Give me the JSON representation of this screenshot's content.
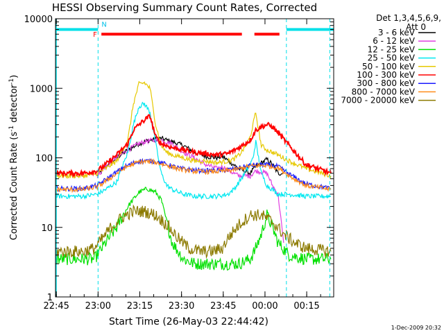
{
  "chart_data": {
    "type": "line",
    "title": "HESSI Observing Summary Count Rates, Corrected",
    "xlabel": "Start Time (26-May-03 22:44:42)",
    "ylabel_main": "Corrected Count Rate (s",
    "ylabel_sup": "-1",
    "ylabel_rest": " detector",
    "ylabel_end": ")",
    "x_unit": "minutes after 26-May-03 22:44:42",
    "xlim": [
      0,
      100
    ],
    "ylim": [
      1,
      10000
    ],
    "y_scale": "log",
    "x_ticks": [
      {
        "label": "22:45",
        "value": 0.3
      },
      {
        "label": "23:00",
        "value": 15.3
      },
      {
        "label": "23:15",
        "value": 30.3
      },
      {
        "label": "23:30",
        "value": 45.3
      },
      {
        "label": "23:45",
        "value": 60.3
      },
      {
        "label": "00:00",
        "value": 75.3
      },
      {
        "label": "00:15",
        "value": 90.3
      }
    ],
    "y_ticks": [
      {
        "label": "1",
        "value": 1
      },
      {
        "label": "10",
        "value": 10
      },
      {
        "label": "100",
        "value": 100
      },
      {
        "label": "1000",
        "value": 1000
      },
      {
        "label": "10000",
        "value": 10000
      }
    ],
    "legend_header": [
      "Det 1,3,4,5,6,9,",
      "Att 0"
    ],
    "legend_position": "right",
    "footer_date": "1-Dec-2009 20:32",
    "night_bars": [
      [
        0,
        15.3
      ],
      [
        83,
        100
      ]
    ],
    "night_level": 7000,
    "flare_bars": [
      [
        16.5,
        67.0
      ],
      [
        71.5,
        80.5
      ]
    ],
    "flare_level": 6000,
    "flare_label": "F",
    "night_label": "N",
    "saa_lines": [
      15.3,
      83.0,
      98.6
    ],
    "series": [
      {
        "name": "3 - 6 keV",
        "color": "#000000",
        "x": [
          15,
          18,
          22,
          26,
          30,
          33,
          36,
          38,
          42,
          46,
          50,
          54,
          58,
          60,
          64,
          66,
          70,
          72,
          76,
          78,
          80,
          82
        ],
        "y": [
          55,
          75,
          100,
          130,
          160,
          175,
          185,
          190,
          170,
          150,
          120,
          105,
          100,
          105,
          80,
          70,
          60,
          75,
          95,
          80,
          60,
          60
        ]
      },
      {
        "name": "6 - 12 keV",
        "color": "#e040e0",
        "x": [
          15,
          18,
          22,
          26,
          30,
          33,
          36,
          38,
          42,
          46,
          50,
          54,
          58,
          60,
          64,
          66,
          70,
          72,
          76,
          78,
          80,
          82
        ],
        "y": [
          55,
          75,
          100,
          130,
          160,
          175,
          180,
          180,
          160,
          120,
          100,
          80,
          70,
          75,
          60,
          55,
          55,
          65,
          60,
          40,
          30,
          6
        ]
      },
      {
        "name": "12 - 25 keV",
        "color": "#00e000",
        "x": [
          0,
          14,
          15,
          18,
          22,
          26,
          30,
          33,
          36,
          38,
          40,
          42,
          46,
          50,
          54,
          58,
          62,
          66,
          70,
          72,
          74,
          76,
          78,
          80,
          84,
          90,
          99
        ],
        "y": [
          3.5,
          3.5,
          4,
          6,
          10,
          20,
          32,
          36,
          32,
          25,
          12,
          6,
          3.5,
          3,
          3,
          3,
          3,
          3,
          3.5,
          5,
          8,
          15,
          10,
          6,
          4,
          3.5,
          3.5
        ]
      },
      {
        "name": "25 - 50 keV",
        "color": "#00e8f0",
        "x": [
          0,
          10,
          15,
          18,
          22,
          26,
          28,
          30,
          32,
          34,
          36,
          38,
          40,
          42,
          46,
          50,
          54,
          58,
          62,
          64,
          66,
          68,
          70,
          71,
          72,
          73,
          74,
          76,
          78,
          80,
          84,
          90,
          99
        ],
        "y": [
          28,
          28,
          30,
          35,
          45,
          120,
          300,
          550,
          600,
          450,
          160,
          60,
          40,
          35,
          30,
          28,
          28,
          28,
          30,
          35,
          45,
          60,
          80,
          100,
          170,
          100,
          60,
          40,
          35,
          30,
          30,
          28,
          28
        ]
      },
      {
        "name": "50 - 100 keV",
        "color": "#e6c800",
        "x": [
          0,
          10,
          15,
          18,
          22,
          26,
          28,
          30,
          32,
          34,
          36,
          38,
          40,
          42,
          46,
          50,
          54,
          58,
          62,
          64,
          66,
          68,
          70,
          71,
          72,
          73,
          74,
          76,
          78,
          80,
          84,
          90,
          99
        ],
        "y": [
          55,
          55,
          60,
          70,
          90,
          180,
          600,
          1150,
          1200,
          1000,
          300,
          150,
          120,
          110,
          100,
          90,
          90,
          85,
          90,
          95,
          110,
          140,
          200,
          300,
          450,
          250,
          150,
          130,
          120,
          110,
          90,
          70,
          55
        ]
      },
      {
        "name": "100 - 300 keV",
        "color": "#ff0000",
        "x": [
          0,
          10,
          15,
          18,
          22,
          26,
          28,
          30,
          32,
          34,
          36,
          38,
          42,
          46,
          50,
          54,
          58,
          62,
          66,
          70,
          72,
          74,
          76,
          78,
          80,
          84,
          90,
          99
        ],
        "y": [
          60,
          60,
          65,
          80,
          110,
          160,
          250,
          300,
          350,
          400,
          200,
          160,
          140,
          130,
          120,
          115,
          110,
          115,
          140,
          180,
          250,
          280,
          300,
          280,
          230,
          150,
          80,
          60
        ]
      },
      {
        "name": "300 - 800 keV",
        "color": "#1a1aff",
        "x": [
          0,
          10,
          15,
          20,
          25,
          30,
          35,
          40,
          45,
          50,
          55,
          60,
          65,
          70,
          75,
          80,
          85,
          90,
          99
        ],
        "y": [
          36,
          36,
          40,
          55,
          75,
          90,
          90,
          80,
          70,
          66,
          65,
          66,
          70,
          78,
          80,
          75,
          55,
          42,
          36
        ]
      },
      {
        "name": "800 - 7000 keV",
        "color": "#ff8c1a",
        "x": [
          0,
          10,
          15,
          20,
          25,
          30,
          35,
          40,
          45,
          50,
          55,
          60,
          65,
          70,
          75,
          80,
          85,
          90,
          99
        ],
        "y": [
          35,
          35,
          38,
          52,
          72,
          88,
          88,
          78,
          68,
          64,
          63,
          64,
          68,
          76,
          78,
          72,
          52,
          40,
          35
        ]
      },
      {
        "name": "7000 - 20000 keV",
        "color": "#8c7a00",
        "x": [
          0,
          10,
          14,
          17,
          20,
          24,
          28,
          32,
          36,
          40,
          44,
          48,
          52,
          56,
          60,
          62,
          66,
          70,
          74,
          78,
          82,
          86,
          90,
          99
        ],
        "y": [
          4.5,
          4.5,
          5,
          7,
          10,
          14,
          17,
          17,
          15,
          11,
          7,
          5,
          4.5,
          4.5,
          5,
          7,
          11,
          15,
          15,
          12,
          8,
          6,
          5,
          4.5
        ]
      }
    ]
  }
}
